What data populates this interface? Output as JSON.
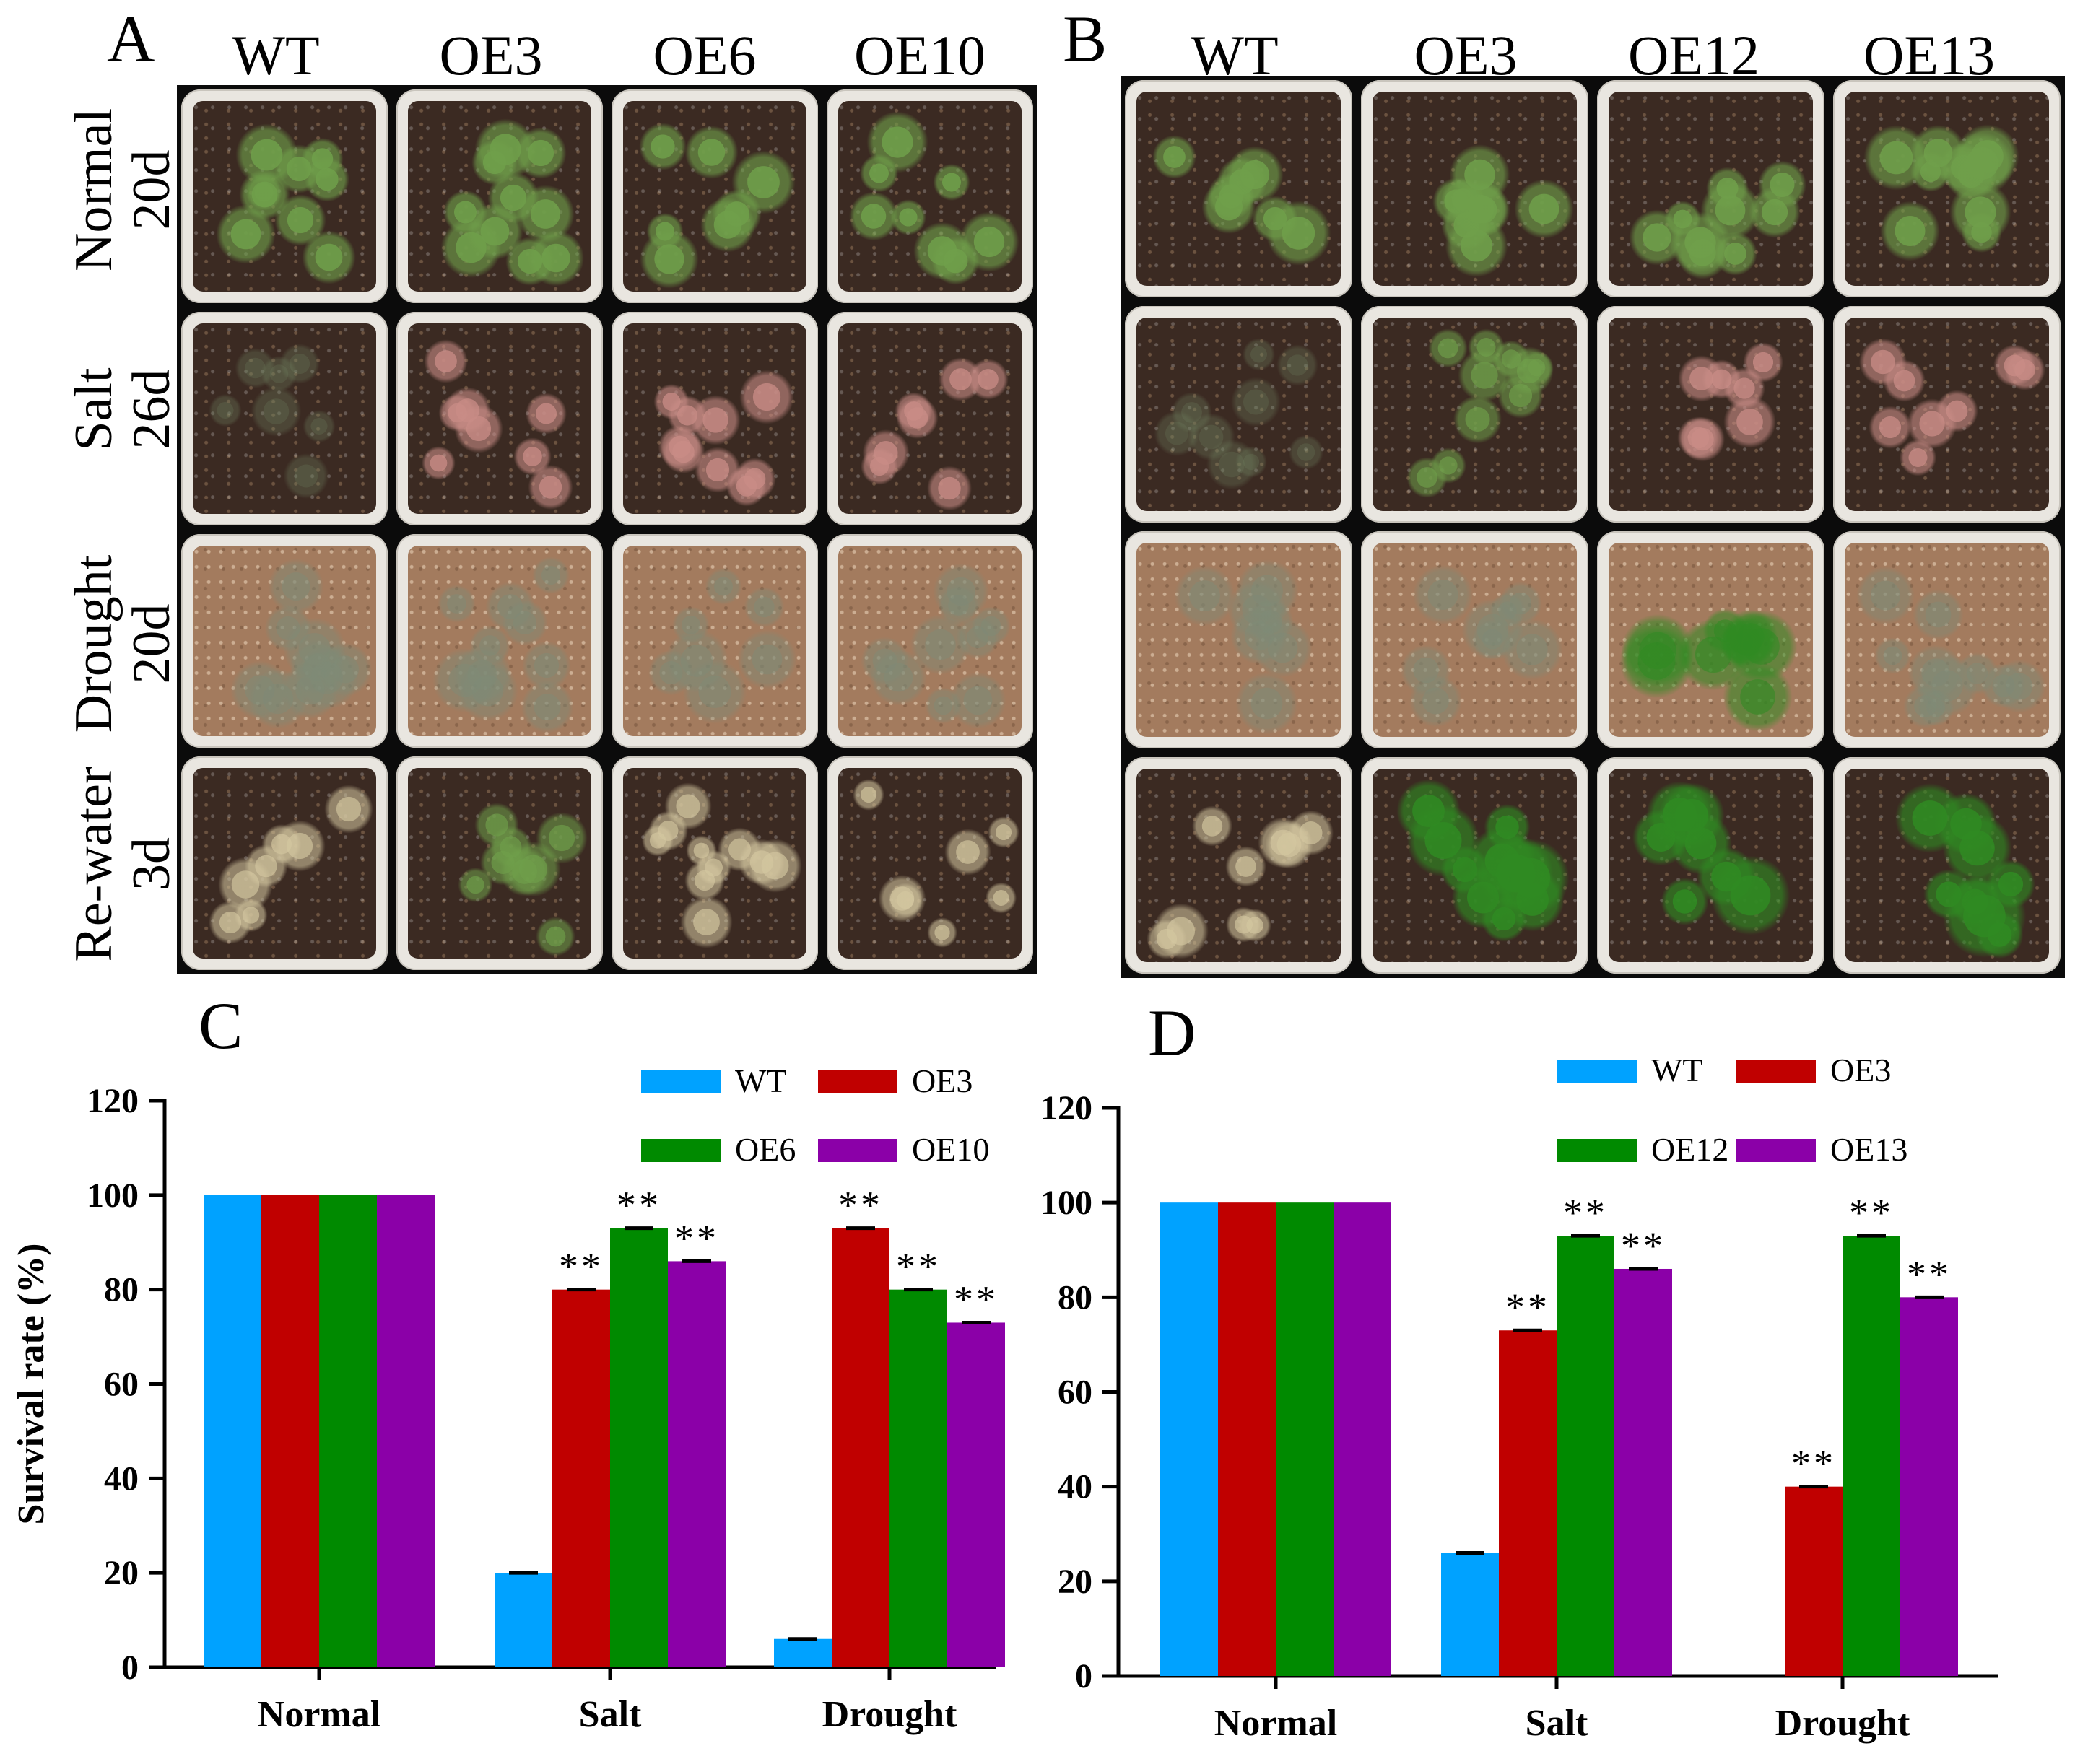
{
  "panels": {
    "A": {
      "letter": "A",
      "columns": [
        "WT",
        "OE3",
        "OE6",
        "OE10"
      ],
      "rows": [
        {
          "condition": "Normal",
          "day": "20d"
        },
        {
          "condition": "Salt",
          "day": "26d"
        },
        {
          "condition": "Drought",
          "day": "20d"
        },
        {
          "condition": "Re-water",
          "day": "3d"
        }
      ]
    },
    "B": {
      "letter": "B",
      "columns": [
        "WT",
        "OE3",
        "OE12",
        "OE13"
      ]
    },
    "C": {
      "letter": "C"
    },
    "D": {
      "letter": "D"
    }
  },
  "colors": {
    "WT": "#00a2ff",
    "OE3": "#c00000",
    "OE6": "#008a00",
    "OE10": "#8b00a8",
    "OE12": "#008a00",
    "OE13": "#8b00a8",
    "healthy_plant": "#6f9f4a",
    "stressed_plant": "#c98c86",
    "pale_plant": "#d4c7a0",
    "vivid_plant": "#2f8a22"
  },
  "chart_data": [
    {
      "type": "bar",
      "panel": "C",
      "categories": [
        "Normal",
        "Salt",
        "Drought"
      ],
      "series": [
        {
          "name": "WT",
          "values": [
            100,
            20,
            6
          ]
        },
        {
          "name": "OE3",
          "values": [
            100,
            80,
            93
          ]
        },
        {
          "name": "OE6",
          "values": [
            100,
            93,
            80
          ]
        },
        {
          "name": "OE10",
          "values": [
            100,
            86,
            73
          ]
        }
      ],
      "significance": [
        {
          "name": "WT",
          "marks": [
            "",
            "",
            ""
          ]
        },
        {
          "name": "OE3",
          "marks": [
            "",
            "**",
            "**"
          ]
        },
        {
          "name": "OE6",
          "marks": [
            "",
            "**",
            "**"
          ]
        },
        {
          "name": "OE10",
          "marks": [
            "",
            "**",
            "**"
          ]
        }
      ],
      "ylabel": "Survival rate (%)",
      "xlabel": "",
      "ylim": [
        0,
        120
      ],
      "yticks": [
        "0",
        "20",
        "40",
        "60",
        "80",
        "100",
        "120"
      ],
      "legend_position": "top-right"
    },
    {
      "type": "bar",
      "panel": "D",
      "categories": [
        "Normal",
        "Salt",
        "Drought"
      ],
      "series": [
        {
          "name": "WT",
          "values": [
            100,
            26,
            0
          ]
        },
        {
          "name": "OE3",
          "values": [
            100,
            73,
            40
          ]
        },
        {
          "name": "OE12",
          "values": [
            100,
            93,
            93
          ]
        },
        {
          "name": "OE13",
          "values": [
            100,
            86,
            80
          ]
        }
      ],
      "significance": [
        {
          "name": "WT",
          "marks": [
            "",
            "",
            ""
          ]
        },
        {
          "name": "OE3",
          "marks": [
            "",
            "**",
            "**"
          ]
        },
        {
          "name": "OE12",
          "marks": [
            "",
            "**",
            "**"
          ]
        },
        {
          "name": "OE13",
          "marks": [
            "",
            "**",
            "**"
          ]
        }
      ],
      "ylabel": "",
      "xlabel": "",
      "ylim": [
        0,
        120
      ],
      "yticks": [
        "0",
        "20",
        "40",
        "60",
        "80",
        "100",
        "120"
      ],
      "legend_position": "top-right"
    }
  ]
}
